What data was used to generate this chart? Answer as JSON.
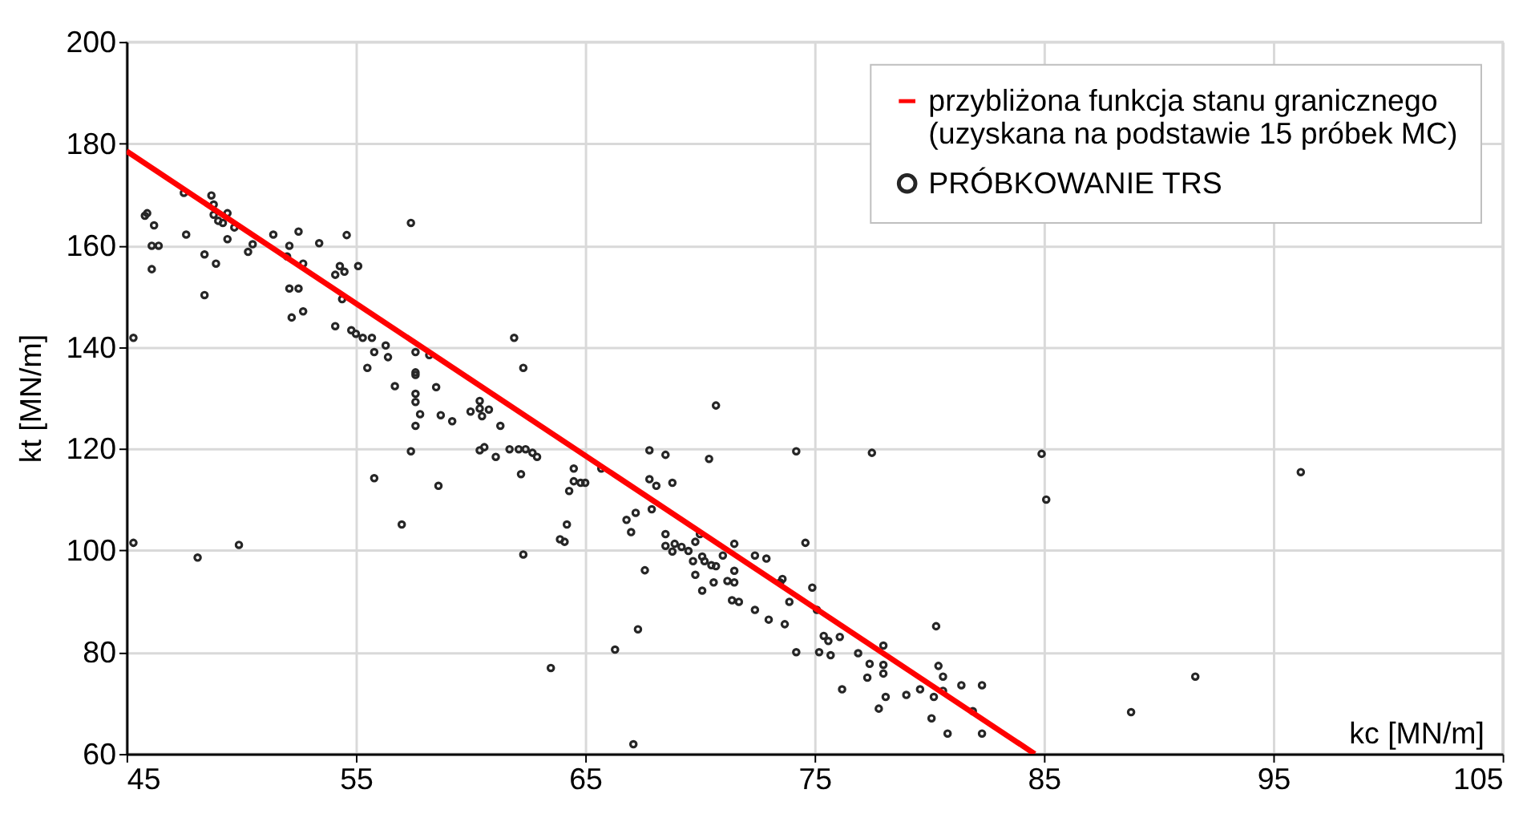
{
  "chart_data": {
    "type": "scatter",
    "xlabel": "kc [MN/m]",
    "ylabel": "kt [MN/m]",
    "xlim": [
      45,
      105
    ],
    "xticks": [
      45,
      55,
      65,
      75,
      85,
      95,
      105
    ],
    "ylim": [
      60,
      200
    ],
    "yticks": [
      60,
      80,
      100,
      120,
      140,
      160,
      180,
      200
    ],
    "grid": true,
    "legend": "top right",
    "series": [
      {
        "name": "przybliżona funkcja stanu granicznego (uzyskana na podstawie 15 próbek MC)",
        "type": "line",
        "marker": "none",
        "color": "#ff0000",
        "x": [
          45,
          84.6
        ],
        "values": [
          178.5,
          60
        ]
      },
      {
        "name": "PRÓBKOWANIE TRS",
        "marker": "circle",
        "color": "#262626",
        "x": [
          45.3,
          45.3,
          45.8,
          45.9,
          46.2,
          46.1,
          46.4,
          46.1,
          47.5,
          47.6,
          48.4,
          48.4,
          48.1,
          48.9,
          48.7,
          48.8,
          48.8,
          49.0,
          49.2,
          49.4,
          49.4,
          49.7,
          49.9,
          50.3,
          50.5,
          51.4,
          52.0,
          52.1,
          52.1,
          52.2,
          52.5,
          52.7,
          52.5,
          52.7,
          53.4,
          54.1,
          54.1,
          54.3,
          54.4,
          54.5,
          54.6,
          55.1,
          54.8,
          55.0,
          55.3,
          55.7,
          55.5,
          55.8,
          56.3,
          56.4,
          55.8,
          56.7,
          57.0,
          57.4,
          57.4,
          57.6,
          57.6,
          57.6,
          57.6,
          57.6,
          57.6,
          57.8,
          58.2,
          58.5,
          58.6,
          58.7,
          59.2,
          60.0,
          60.4,
          60.4,
          60.5,
          60.8,
          60.4,
          60.6,
          61.1,
          61.3,
          61.7,
          61.9,
          62.1,
          62.2,
          62.3,
          62.4,
          62.3,
          62.9,
          62.7,
          63.5,
          63.9,
          64.1,
          64.2,
          64.3,
          64.5,
          64.5,
          64.8,
          65.0,
          65.7,
          66.3,
          66.8,
          67.0,
          67.2,
          67.1,
          67.3,
          67.6,
          67.8,
          67.8,
          67.9,
          68.1,
          68.5,
          68.5,
          68.5,
          68.8,
          68.8,
          68.9,
          69.2,
          69.5,
          69.7,
          69.8,
          70.0,
          70.1,
          70.2,
          70.5,
          69.8,
          70.1,
          70.6,
          70.7,
          70.4,
          70.7,
          71.0,
          71.2,
          71.4,
          71.5,
          71.5,
          71.5,
          71.7,
          72.4,
          72.4,
          72.9,
          73.0,
          73.5,
          73.7,
          73.6,
          73.9,
          74.2,
          74.2,
          74.6,
          74.9,
          75.1,
          75.2,
          75.4,
          75.6,
          75.7,
          76.1,
          76.2,
          76.9,
          77.3,
          77.5,
          77.4,
          77.8,
          78.0,
          78.0,
          78.1,
          78.0,
          79.0,
          79.6,
          80.1,
          80.2,
          80.3,
          80.4,
          80.6,
          80.8,
          80.6,
          81.4,
          81.9,
          82.3,
          82.3,
          84.9,
          85.1,
          88.8,
          91.6,
          96.2
        ],
        "values": [
          141.8,
          101.5,
          165.8,
          166.3,
          163.9,
          159.9,
          159.9,
          155.3,
          170.3,
          162.1,
          158.2,
          150.2,
          98.6,
          156.4,
          169.8,
          168.0,
          166.0,
          164.8,
          164.4,
          166.3,
          161.2,
          163.5,
          101.1,
          158.7,
          160.2,
          162.1,
          157.8,
          159.9,
          151.5,
          145.8,
          162.7,
          156.4,
          151.5,
          147.0,
          160.4,
          144.1,
          154.2,
          155.9,
          149.4,
          154.8,
          162.0,
          155.9,
          143.3,
          142.6,
          141.8,
          141.8,
          135.9,
          114.2,
          140.3,
          138.0,
          139.0,
          132.3,
          105.1,
          164.4,
          119.5,
          134.5,
          135.0,
          139.0,
          130.8,
          124.5,
          129.2,
          126.8,
          138.4,
          132.1,
          112.7,
          126.6,
          125.4,
          127.3,
          129.4,
          127.9,
          126.4,
          127.7,
          119.7,
          120.3,
          118.4,
          124.5,
          119.9,
          141.8,
          119.9,
          115.0,
          135.9,
          119.9,
          99.2,
          118.4,
          119.2,
          76.9,
          102.2,
          101.7,
          105.1,
          111.7,
          116.1,
          113.6,
          113.3,
          113.3,
          116.1,
          80.5,
          106.0,
          103.6,
          107.4,
          61.9,
          84.5,
          96.1,
          119.7,
          114.0,
          108.1,
          112.7,
          118.8,
          103.2,
          100.9,
          113.3,
          99.8,
          101.3,
          100.7,
          99.9,
          97.9,
          101.7,
          103.2,
          98.8,
          97.9,
          97.1,
          95.2,
          92.1,
          93.7,
          96.9,
          118.0,
          128.5,
          99.0,
          94.0,
          90.2,
          101.3,
          96.0,
          93.7,
          89.9,
          88.3,
          99.0,
          98.4,
          86.4,
          93.7,
          85.5,
          94.4,
          89.9,
          119.5,
          80.0,
          101.5,
          92.7,
          88.3,
          80.0,
          83.2,
          82.2,
          79.4,
          83.0,
          72.7,
          79.8,
          75.0,
          119.2,
          77.7,
          68.9,
          81.3,
          77.5,
          71.2,
          75.8,
          71.6,
          72.7,
          67.0,
          71.2,
          85.1,
          77.3,
          75.2,
          64.0,
          72.4,
          73.5,
          68.4,
          64.0,
          73.5,
          119.0,
          110.0,
          68.2,
          75.2,
          115.4
        ]
      }
    ]
  }
}
